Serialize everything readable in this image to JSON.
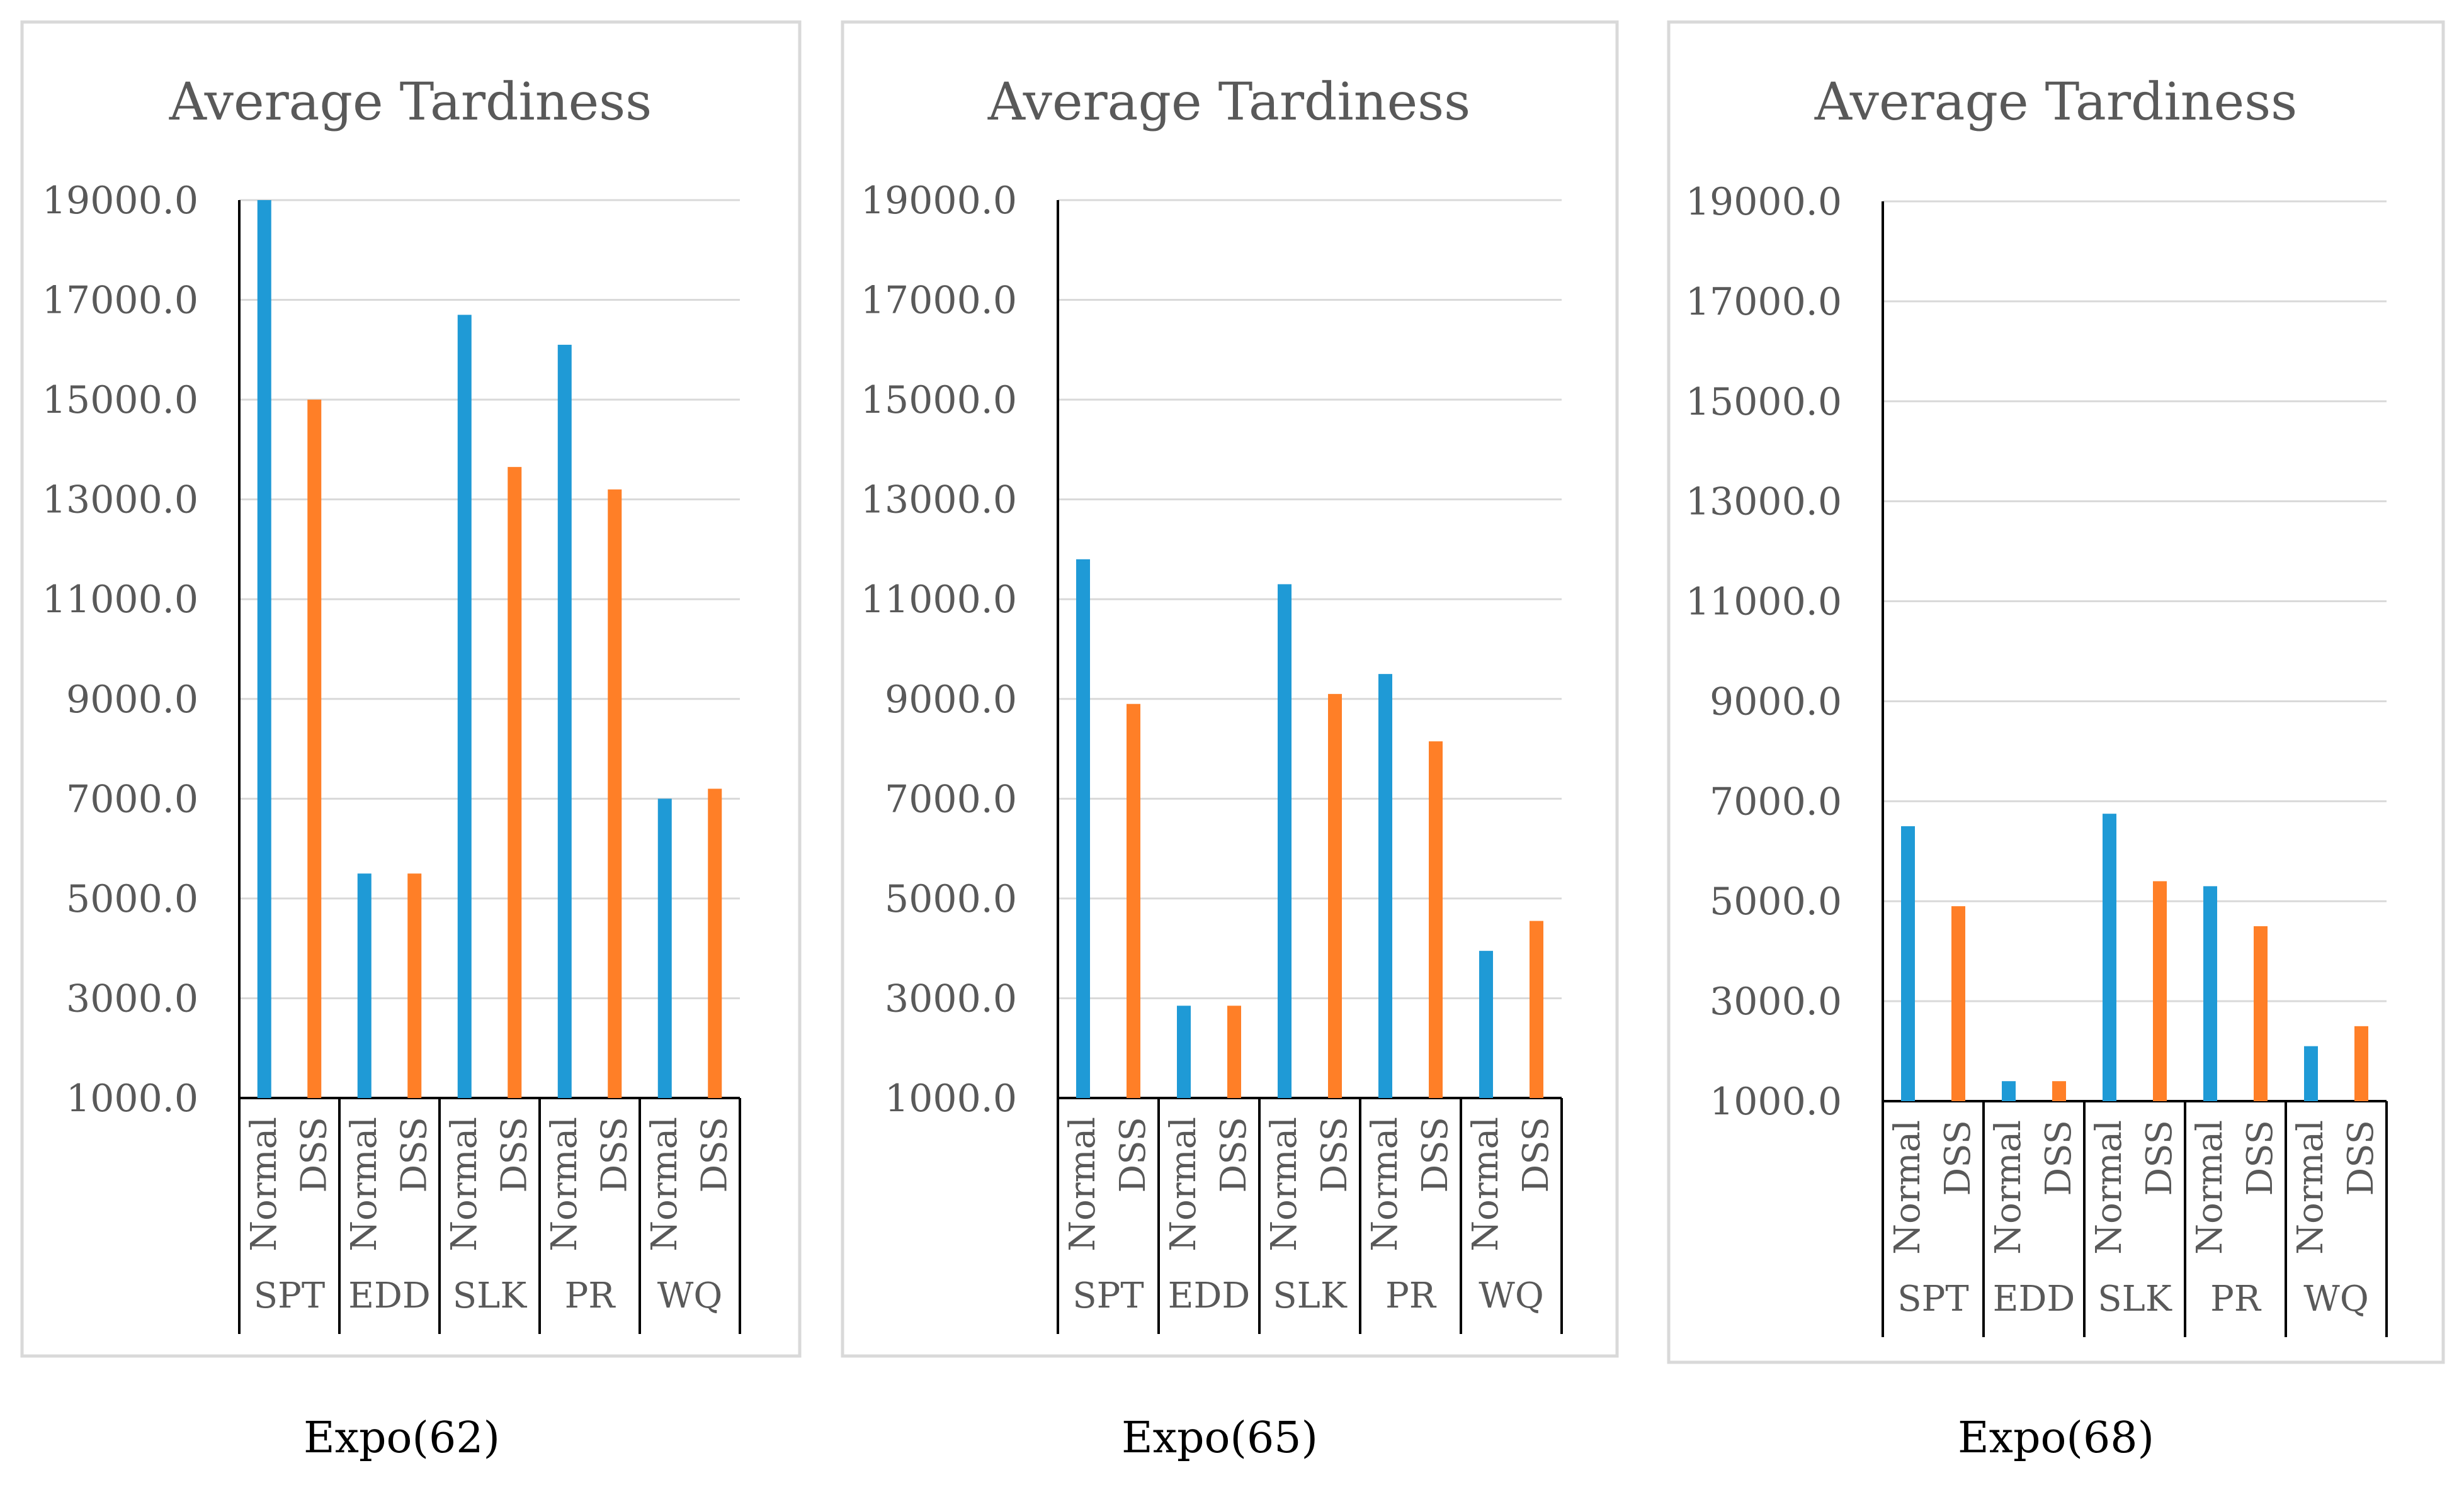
{
  "chart_data": [
    {
      "type": "bar",
      "title": "Average Tardiness",
      "caption": "Expo(62)",
      "groups": [
        "SPT",
        "EDD",
        "SLK",
        "PR",
        "WQ"
      ],
      "series": [
        {
          "name": "Normal",
          "color": "#1f9ad6",
          "values": [
            19000,
            5500,
            16700,
            16100,
            7000
          ]
        },
        {
          "name": "DSS",
          "color": "#ff7f27",
          "values": [
            15000,
            5500,
            13650,
            13200,
            7200
          ]
        }
      ],
      "yticks": [
        "19000.0",
        "17000.0",
        "15000.0",
        "13000.0",
        "11000.0",
        "9000.0",
        "7000.0",
        "5000.0",
        "3000.0",
        "1000.0"
      ],
      "ylim": [
        1000,
        19000
      ]
    },
    {
      "type": "bar",
      "title": "Average Tardiness",
      "caption": "Expo(65)",
      "groups": [
        "SPT",
        "EDD",
        "SLK",
        "PR",
        "WQ"
      ],
      "series": [
        {
          "name": "Normal",
          "color": "#1f9ad6",
          "values": [
            11800,
            2850,
            11300,
            9500,
            3950
          ]
        },
        {
          "name": "DSS",
          "color": "#ff7f27",
          "values": [
            8900,
            2850,
            9100,
            8150,
            4550
          ]
        }
      ],
      "yticks": [
        "19000.0",
        "17000.0",
        "15000.0",
        "13000.0",
        "11000.0",
        "9000.0",
        "7000.0",
        "5000.0",
        "3000.0",
        "1000.0"
      ],
      "ylim": [
        1000,
        19000
      ]
    },
    {
      "type": "bar",
      "title": "Average Tardiness",
      "caption": "Expo(68)",
      "groups": [
        "SPT",
        "EDD",
        "SLK",
        "PR",
        "WQ"
      ],
      "series": [
        {
          "name": "Normal",
          "color": "#1f9ad6",
          "values": [
            6500,
            1400,
            6750,
            5300,
            2100
          ]
        },
        {
          "name": "DSS",
          "color": "#ff7f27",
          "values": [
            4900,
            1400,
            5400,
            4500,
            2500
          ]
        }
      ],
      "yticks": [
        "19000.0",
        "17000.0",
        "15000.0",
        "13000.0",
        "11000.0",
        "9000.0",
        "7000.0",
        "5000.0",
        "3000.0",
        "1000.0"
      ],
      "ylim": [
        1000,
        19000
      ]
    }
  ]
}
